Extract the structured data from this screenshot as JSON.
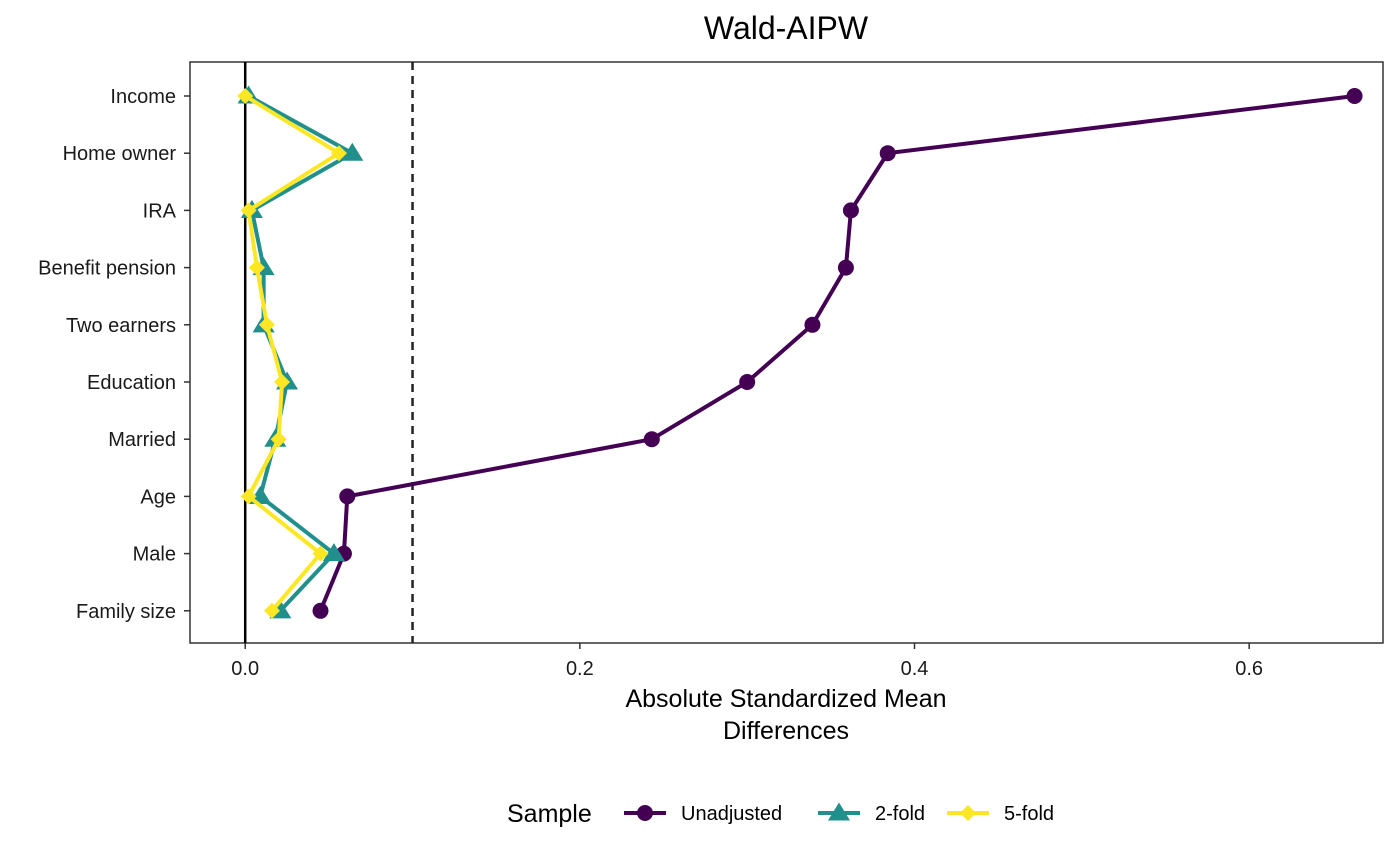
{
  "chart_data": {
    "type": "line",
    "title": "Wald-AIPW",
    "xlabel_lines": [
      "Absolute Standardized Mean",
      "Differences"
    ],
    "ylabel": "",
    "xlim": [
      -0.033,
      0.68
    ],
    "x_ticks": [
      0.0,
      0.2,
      0.4,
      0.6
    ],
    "x_tick_labels": [
      "0.0",
      "0.2",
      "0.4",
      "0.6"
    ],
    "categories": [
      "Income",
      "Home owner",
      "IRA",
      "Benefit pension",
      "Two earners",
      "Education",
      "Married",
      "Age",
      "Male",
      "Family size"
    ],
    "reference_lines": [
      {
        "x": 0.0,
        "style": "solid"
      },
      {
        "x": 0.1,
        "style": "dashed"
      }
    ],
    "series": [
      {
        "name": "Unadjusted",
        "marker": "circle",
        "color": "#440154",
        "values": [
          0.663,
          0.384,
          0.362,
          0.359,
          0.339,
          0.3,
          0.243,
          0.061,
          0.059,
          0.045
        ]
      },
      {
        "name": "2-fold",
        "marker": "triangle",
        "color": "#21908C",
        "values": [
          0.002,
          0.064,
          0.004,
          0.011,
          0.011,
          0.025,
          0.018,
          0.009,
          0.053,
          0.021
        ]
      },
      {
        "name": "5-fold",
        "marker": "diamond",
        "color": "#FDE725",
        "values": [
          0.0,
          0.056,
          0.002,
          0.007,
          0.013,
          0.022,
          0.02,
          0.002,
          0.045,
          0.016
        ]
      }
    ],
    "grid": false,
    "legend": {
      "title": "Sample",
      "position": "bottom"
    }
  }
}
